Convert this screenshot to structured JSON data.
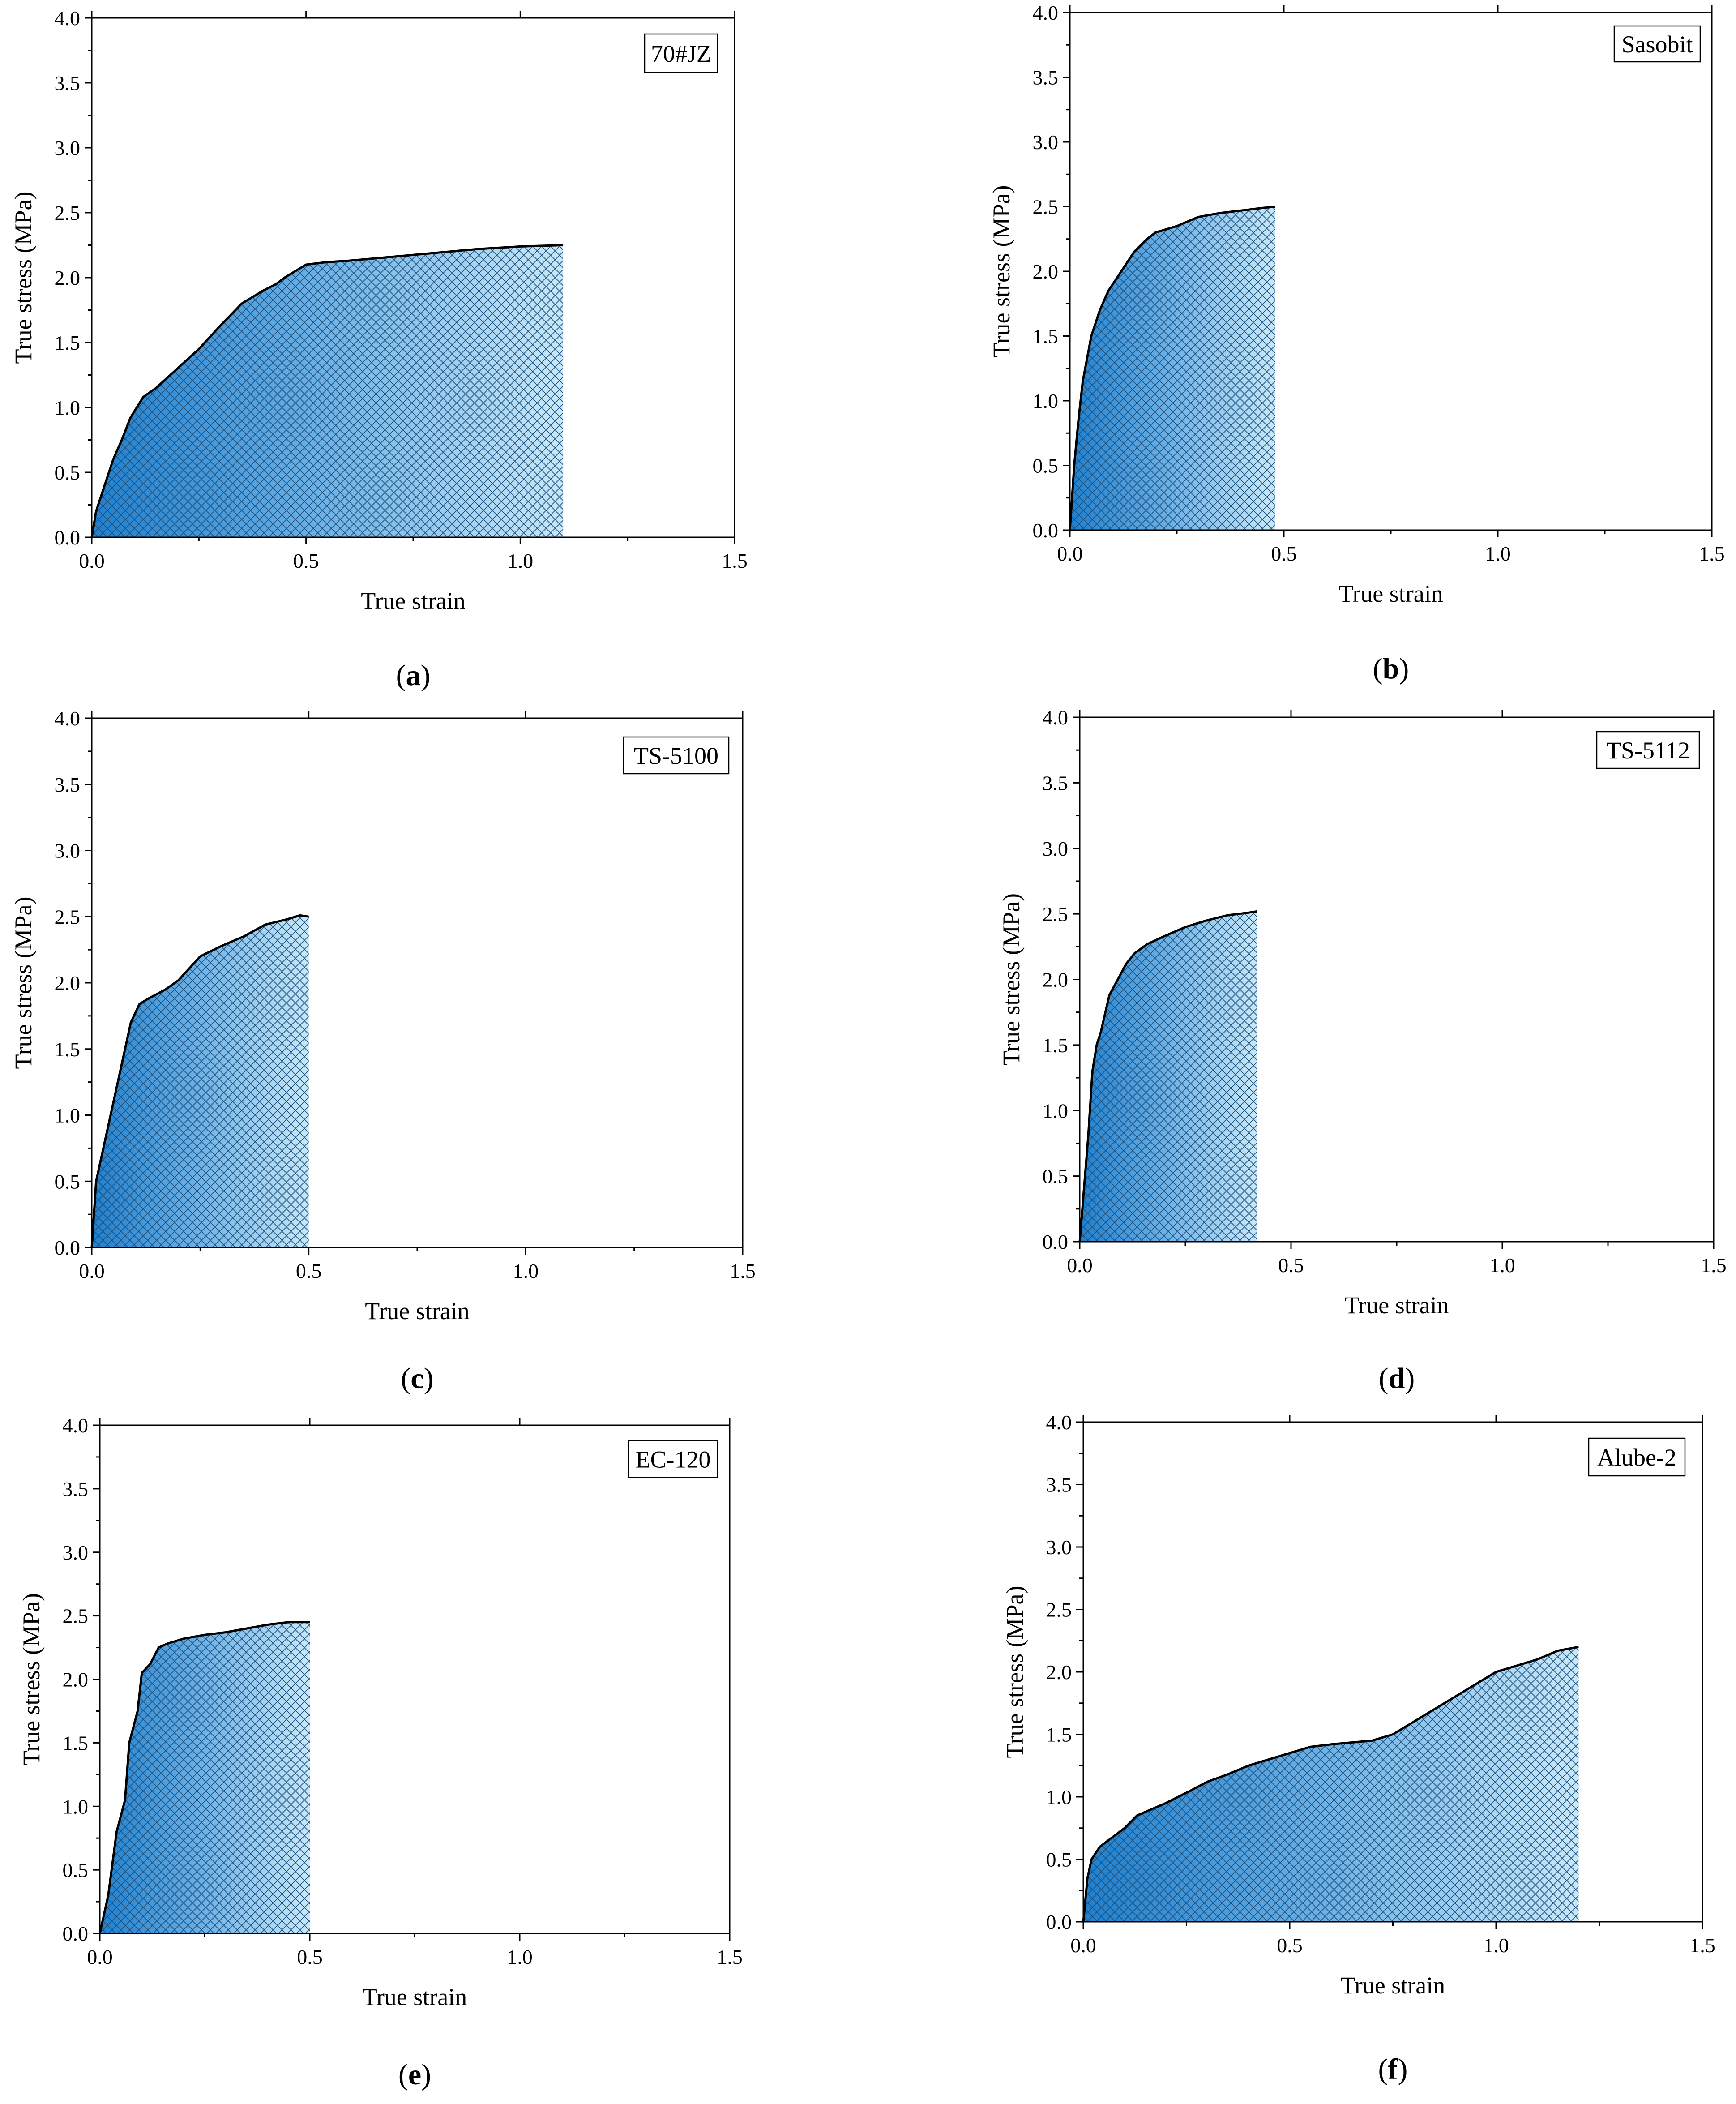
{
  "chart_data": [
    {
      "panel": "(a)",
      "panel_letter": "a",
      "legend": "70#JZ",
      "type": "area",
      "xlabel": "True strain",
      "ylabel": "True stress (MPa)",
      "xlim": [
        0,
        1.5
      ],
      "ylim": [
        0,
        4.0
      ],
      "x_ticks": [
        "0.0",
        "0.5",
        "1.0",
        "1.5"
      ],
      "y_ticks": [
        "0.0",
        "0.5",
        "1.0",
        "1.5",
        "2.0",
        "2.5",
        "3.0",
        "3.5",
        "4.0"
      ],
      "legend_position": "top-right",
      "series": [
        {
          "name": "70#JZ",
          "x": [
            0,
            0.01,
            0.03,
            0.05,
            0.07,
            0.09,
            0.12,
            0.15,
            0.2,
            0.25,
            0.3,
            0.35,
            0.4,
            0.43,
            0.45,
            0.5,
            0.55,
            0.6,
            0.7,
            0.8,
            0.9,
            1.0,
            1.1
          ],
          "y": [
            0,
            0.2,
            0.4,
            0.6,
            0.75,
            0.92,
            1.08,
            1.15,
            1.3,
            1.45,
            1.63,
            1.8,
            1.9,
            1.95,
            2.0,
            2.1,
            2.12,
            2.13,
            2.16,
            2.19,
            2.22,
            2.24,
            2.25
          ]
        }
      ]
    },
    {
      "panel": "(b)",
      "panel_letter": "b",
      "legend": "Sasobit",
      "type": "area",
      "xlabel": "True strain",
      "ylabel": "True stress (MPa)",
      "xlim": [
        0,
        1.5
      ],
      "ylim": [
        0,
        4.0
      ],
      "x_ticks": [
        "0.0",
        "0.5",
        "1.0",
        "1.5"
      ],
      "y_ticks": [
        "0.0",
        "0.5",
        "1.0",
        "1.5",
        "2.0",
        "2.5",
        "3.0",
        "3.5",
        "4.0"
      ],
      "legend_position": "top-right",
      "series": [
        {
          "name": "Sasobit",
          "x": [
            0,
            0.01,
            0.02,
            0.03,
            0.05,
            0.07,
            0.09,
            0.11,
            0.13,
            0.15,
            0.18,
            0.2,
            0.25,
            0.3,
            0.35,
            0.4,
            0.45,
            0.48
          ],
          "y": [
            0,
            0.5,
            0.85,
            1.15,
            1.5,
            1.7,
            1.85,
            1.95,
            2.05,
            2.15,
            2.25,
            2.3,
            2.35,
            2.42,
            2.45,
            2.47,
            2.49,
            2.5
          ]
        }
      ]
    },
    {
      "panel": "(c)",
      "panel_letter": "c",
      "legend": "TS-5100",
      "type": "area",
      "xlabel": "True strain",
      "ylabel": "True stress (MPa)",
      "xlim": [
        0,
        1.5
      ],
      "ylim": [
        0,
        4.0
      ],
      "x_ticks": [
        "0.0",
        "0.5",
        "1.0",
        "1.5"
      ],
      "y_ticks": [
        "0.0",
        "0.5",
        "1.0",
        "1.5",
        "2.0",
        "2.5",
        "3.0",
        "3.5",
        "4.0"
      ],
      "legend_position": "top-right",
      "series": [
        {
          "name": "TS-5100",
          "x": [
            0,
            0.01,
            0.03,
            0.05,
            0.07,
            0.09,
            0.11,
            0.13,
            0.17,
            0.2,
            0.25,
            0.3,
            0.35,
            0.4,
            0.45,
            0.48,
            0.5
          ],
          "y": [
            0,
            0.5,
            0.8,
            1.1,
            1.4,
            1.7,
            1.84,
            1.88,
            1.95,
            2.02,
            2.2,
            2.28,
            2.35,
            2.44,
            2.48,
            2.51,
            2.5
          ]
        }
      ]
    },
    {
      "panel": "(d)",
      "panel_letter": "d",
      "legend": "TS-5112",
      "type": "area",
      "xlabel": "True strain",
      "ylabel": "True stress (MPa)",
      "xlim": [
        0,
        1.5
      ],
      "ylim": [
        0,
        4.0
      ],
      "x_ticks": [
        "0.0",
        "0.5",
        "1.0",
        "1.5"
      ],
      "y_ticks": [
        "0.0",
        "0.5",
        "1.0",
        "1.5",
        "2.0",
        "2.5",
        "3.0",
        "3.5",
        "4.0"
      ],
      "legend_position": "top-right",
      "series": [
        {
          "name": "TS-5112",
          "x": [
            0,
            0.01,
            0.02,
            0.03,
            0.04,
            0.05,
            0.07,
            0.09,
            0.11,
            0.13,
            0.16,
            0.2,
            0.25,
            0.3,
            0.35,
            0.4,
            0.42
          ],
          "y": [
            0,
            0.4,
            0.8,
            1.3,
            1.5,
            1.6,
            1.88,
            2.0,
            2.12,
            2.2,
            2.27,
            2.33,
            2.4,
            2.45,
            2.49,
            2.51,
            2.52
          ]
        }
      ]
    },
    {
      "panel": "(e)",
      "panel_letter": "e",
      "legend": "EC-120",
      "type": "area",
      "xlabel": "True strain",
      "ylabel": "True stress (MPa)",
      "xlim": [
        0,
        1.5
      ],
      "ylim": [
        0,
        4.0
      ],
      "x_ticks": [
        "0.0",
        "0.5",
        "1.0",
        "1.5"
      ],
      "y_ticks": [
        "0.0",
        "0.5",
        "1.0",
        "1.5",
        "2.0",
        "2.5",
        "3.0",
        "3.5",
        "4.0"
      ],
      "legend_position": "top-right",
      "series": [
        {
          "name": "EC-120",
          "x": [
            0,
            0.02,
            0.04,
            0.06,
            0.07,
            0.09,
            0.1,
            0.12,
            0.14,
            0.16,
            0.2,
            0.25,
            0.3,
            0.35,
            0.4,
            0.45,
            0.5
          ],
          "y": [
            0,
            0.3,
            0.8,
            1.05,
            1.5,
            1.75,
            2.05,
            2.12,
            2.25,
            2.28,
            2.32,
            2.35,
            2.37,
            2.4,
            2.43,
            2.45,
            2.45
          ]
        }
      ]
    },
    {
      "panel": "(f)",
      "panel_letter": "f",
      "legend": "Alube-2",
      "type": "area",
      "xlabel": "True strain",
      "ylabel": "True stress (MPa)",
      "xlim": [
        0,
        1.5
      ],
      "ylim": [
        0,
        4.0
      ],
      "x_ticks": [
        "0.0",
        "0.5",
        "1.0",
        "1.5"
      ],
      "y_ticks": [
        "0.0",
        "0.5",
        "1.0",
        "1.5",
        "2.0",
        "2.5",
        "3.0",
        "3.5",
        "4.0"
      ],
      "legend_position": "top-right",
      "series": [
        {
          "name": "Alube-2",
          "x": [
            0,
            0.01,
            0.02,
            0.04,
            0.06,
            0.1,
            0.13,
            0.2,
            0.26,
            0.3,
            0.35,
            0.4,
            0.45,
            0.5,
            0.55,
            0.6,
            0.7,
            0.75,
            0.8,
            0.85,
            0.9,
            0.95,
            1.0,
            1.05,
            1.1,
            1.15,
            1.2
          ],
          "y": [
            0,
            0.35,
            0.5,
            0.6,
            0.65,
            0.75,
            0.85,
            0.95,
            1.05,
            1.12,
            1.18,
            1.25,
            1.3,
            1.35,
            1.4,
            1.42,
            1.45,
            1.5,
            1.6,
            1.7,
            1.8,
            1.9,
            2.0,
            2.05,
            2.1,
            2.17,
            2.2
          ]
        }
      ]
    }
  ]
}
